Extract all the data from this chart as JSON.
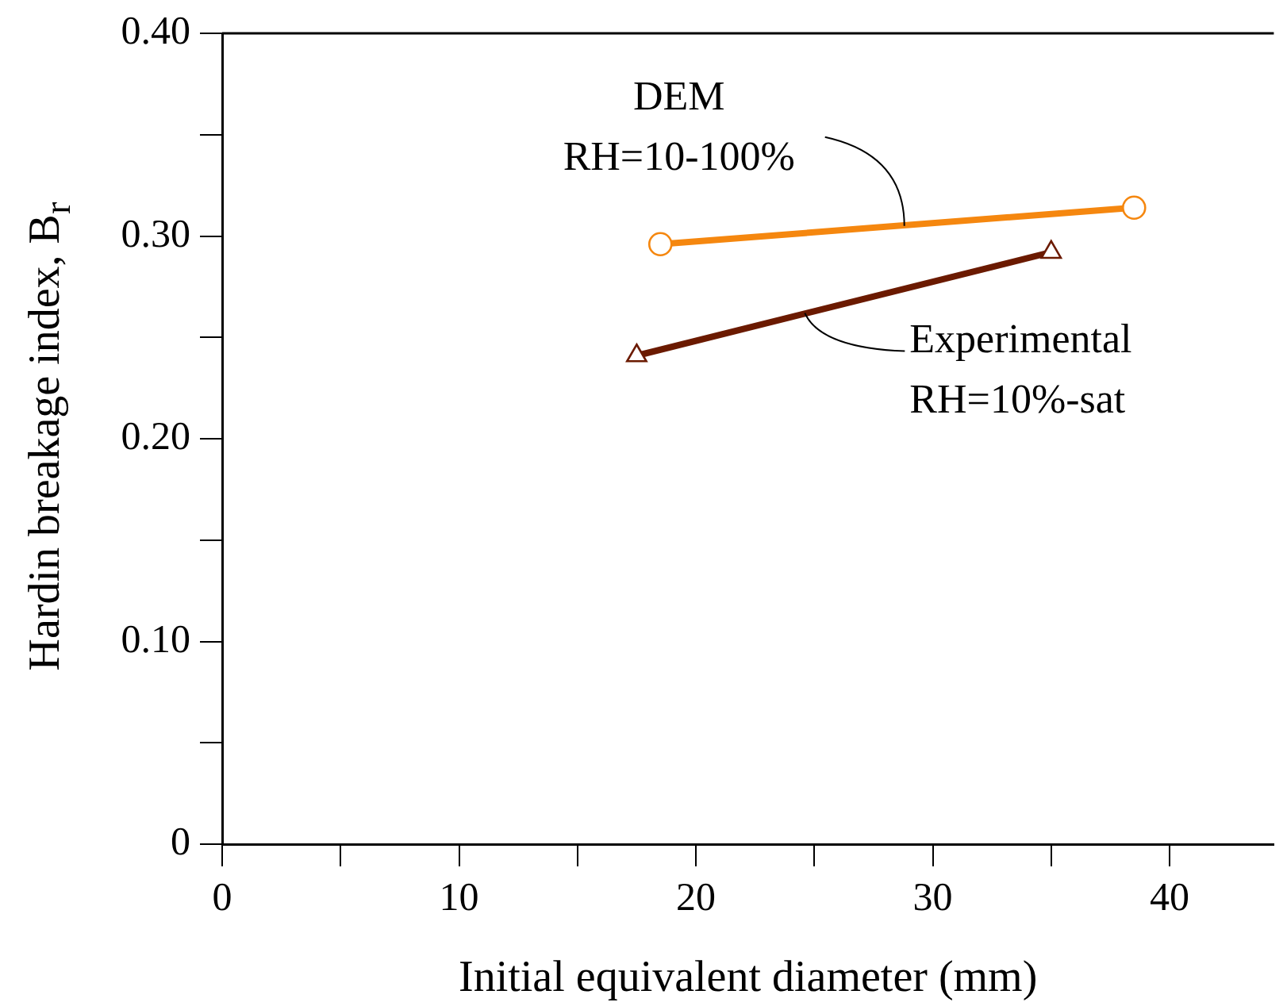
{
  "chart_data": {
    "type": "line",
    "xlabel": "Initial equivalent diameter (mm)",
    "ylabel": "Hardin breakage index, B$_{r}$",
    "xlim": [
      0,
      44.4
    ],
    "xticks": [
      0,
      {
        "value": 5,
        "label": null
      },
      10,
      {
        "value": 15,
        "label": null
      },
      20,
      {
        "value": 25,
        "label": null
      },
      30,
      {
        "value": 35,
        "label": null
      },
      40
    ],
    "ylim": [
      0,
      0.4
    ],
    "yticks": [
      0,
      {
        "value": 0.05,
        "label": null
      },
      {
        "value": 0.1,
        "label": "0.10"
      },
      {
        "value": 0.15,
        "label": null
      },
      {
        "value": 0.2,
        "label": "0.20"
      },
      {
        "value": 0.25,
        "label": null
      },
      {
        "value": 0.3,
        "label": "0.30"
      },
      {
        "value": 0.35,
        "label": null
      },
      {
        "value": 0.4,
        "label": "0.40"
      }
    ],
    "grid": false,
    "legend": false,
    "series": [
      {
        "color": "#f5870f",
        "marker": "circle",
        "x": [
          18.5,
          38.5
        ],
        "values": [
          0.296,
          0.314
        ]
      },
      {
        "color": "#6b1a00",
        "marker": "triangle",
        "x": [
          17.5,
          35
        ],
        "values": [
          0.241,
          0.292
        ]
      }
    ],
    "annotations": [
      {
        "text": "DEM\nRH=10-100%",
        "x": 28.8,
        "y": 0.305
      },
      {
        "text": "Experimental\nRH=10%-sat",
        "x": 24.6,
        "y": 0.262
      }
    ]
  }
}
